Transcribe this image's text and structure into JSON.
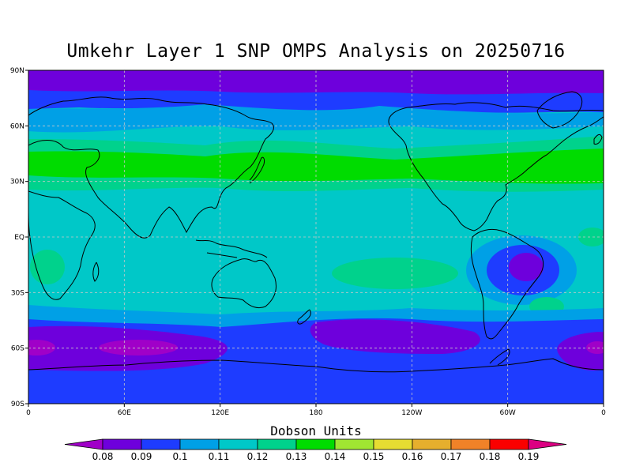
{
  "title": "Umkehr Layer 1 SNP OMPS Analysis on 20250716",
  "map": {
    "projection": "equirectangular",
    "lon_range": [
      0,
      360
    ],
    "lat_range": [
      -90,
      90
    ],
    "grid": true,
    "coastlines": true
  },
  "axes": {
    "lat_ticks": [
      {
        "lat": 90,
        "label": "90N"
      },
      {
        "lat": 60,
        "label": "60N"
      },
      {
        "lat": 30,
        "label": "30N"
      },
      {
        "lat": 0,
        "label": "EQ"
      },
      {
        "lat": -30,
        "label": "30S"
      },
      {
        "lat": -60,
        "label": "60S"
      },
      {
        "lat": -90,
        "label": "90S"
      }
    ],
    "lon_ticks": [
      {
        "lon": 0,
        "label": "0"
      },
      {
        "lon": 60,
        "label": "60E"
      },
      {
        "lon": 120,
        "label": "120E"
      },
      {
        "lon": 180,
        "label": "180"
      },
      {
        "lon": 240,
        "label": "120W"
      },
      {
        "lon": 300,
        "label": "60W"
      },
      {
        "lon": 360,
        "label": "0"
      }
    ]
  },
  "colorbar": {
    "title": "Dobson Units",
    "levels": [
      "0.08",
      "0.09",
      "0.1",
      "0.11",
      "0.12",
      "0.13",
      "0.14",
      "0.15",
      "0.16",
      "0.17",
      "0.18",
      "0.19"
    ],
    "colors": [
      "#a000c8",
      "#6e00dc",
      "#1e3cff",
      "#00a0e6",
      "#00c8c8",
      "#00d28c",
      "#00dc00",
      "#a0e632",
      "#e6dc32",
      "#e6af2d",
      "#f08228",
      "#fa0000",
      "#dc0082"
    ]
  },
  "colors": {
    "band_polar_north": "#6e00dc",
    "band_subpolar": "#1e3cff",
    "band_midlat": "#00c8c8",
    "band_max": "#00dc00",
    "band_tropics": "#00c8c8",
    "band_southern_min": "#6e00dc",
    "coastline": "#000000",
    "grid": "#c8c8c8"
  }
}
